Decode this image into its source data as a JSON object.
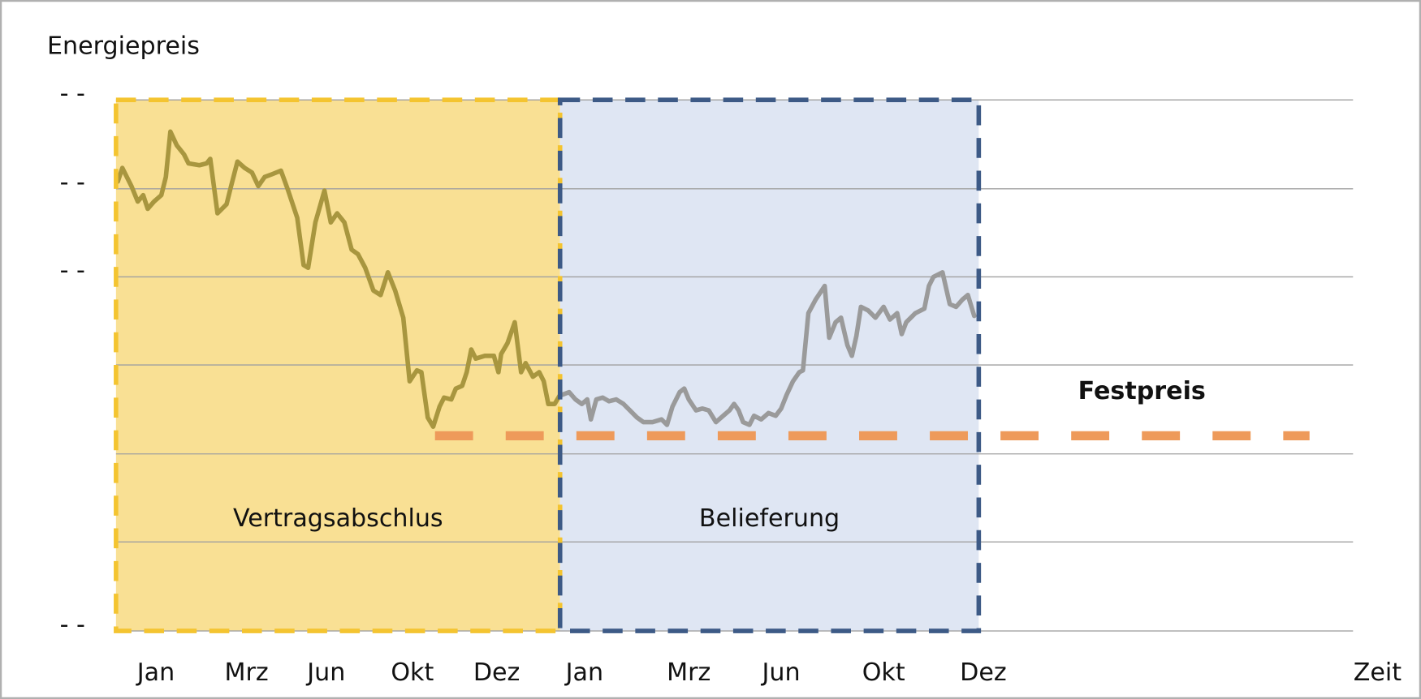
{
  "chart_data": {
    "type": "line",
    "y_label": "Energiepreis",
    "x_label": "Zeit",
    "xlim": [
      128,
      1493
    ],
    "ylim": [
      0,
      585
    ],
    "ygrid": [
      0,
      98,
      195,
      293,
      390,
      487,
      585
    ],
    "yticks": [
      {
        "value": 585,
        "label": "- -"
      },
      {
        "value": 487,
        "label": "- -"
      },
      {
        "value": 390,
        "label": "- -"
      },
      {
        "value": 0,
        "label": "- -"
      }
    ],
    "xticks": [
      {
        "value": 172,
        "label": "Jan"
      },
      {
        "value": 272,
        "label": "Mrz"
      },
      {
        "value": 360,
        "label": "Jun"
      },
      {
        "value": 455,
        "label": "Okt"
      },
      {
        "value": 548,
        "label": "Dez"
      },
      {
        "value": 645,
        "label": "Jan"
      },
      {
        "value": 760,
        "label": "Mrz"
      },
      {
        "value": 862,
        "label": "Jun"
      },
      {
        "value": 975,
        "label": "Okt"
      },
      {
        "value": 1085,
        "label": "Dez"
      }
    ],
    "regions": [
      {
        "label": "Vertragsabschlus",
        "x": [
          128,
          618
        ],
        "fill": "#f9e094",
        "border": "#f4c430"
      },
      {
        "label": "Belieferung",
        "x": [
          618,
          1080
        ],
        "fill": "#dfe6f3",
        "border": "#3d5a86"
      }
    ],
    "fixed_price": {
      "label": "Festpreis",
      "value": 215,
      "x": [
        480,
        1445
      ],
      "color": "#ee9a5a"
    },
    "series": [
      {
        "color": "#a8963f",
        "x": [
          130,
          135,
          145,
          152,
          158,
          163,
          170,
          178,
          183,
          188,
          195,
          203,
          208,
          220,
          228,
          232,
          240,
          250,
          255,
          262,
          270,
          278,
          285,
          292,
          300,
          310,
          318,
          328,
          335,
          340,
          348,
          358,
          365,
          372,
          380,
          388,
          395,
          403,
          412,
          420,
          428,
          436,
          445,
          452,
          460,
          465,
          472,
          478,
          485,
          490,
          498,
          503,
          510,
          515,
          520,
          525,
          535,
          545,
          550,
          553,
          560,
          568,
          575,
          580,
          588,
          595,
          600,
          605,
          612,
          618
        ],
        "values": [
          495,
          510,
          490,
          473,
          480,
          465,
          473,
          480,
          500,
          550,
          535,
          525,
          515,
          513,
          515,
          520,
          460,
          470,
          490,
          517,
          510,
          505,
          490,
          500,
          503,
          507,
          485,
          455,
          403,
          400,
          450,
          485,
          450,
          460,
          450,
          420,
          415,
          400,
          375,
          370,
          395,
          375,
          345,
          275,
          287,
          285,
          235,
          225,
          247,
          257,
          255,
          267,
          270,
          285,
          310,
          300,
          303,
          303,
          285,
          305,
          317,
          340,
          285,
          295,
          280,
          285,
          275,
          250,
          250,
          260
        ]
      },
      {
        "color": "#9a9a9a",
        "x": [
          620,
          628,
          635,
          642,
          648,
          652,
          658,
          665,
          672,
          680,
          688,
          695,
          703,
          710,
          720,
          730,
          736,
          742,
          750,
          755,
          760,
          768,
          775,
          782,
          790,
          798,
          805,
          810,
          815,
          820,
          827,
          832,
          840,
          848,
          856,
          862,
          868,
          875,
          882,
          886,
          892,
          900,
          910,
          915,
          922,
          928,
          935,
          940,
          945,
          950,
          958,
          966,
          975,
          982,
          990,
          995,
          1000,
          1010,
          1020,
          1025,
          1030,
          1040,
          1048,
          1055,
          1062,
          1068,
          1075
        ],
        "values": [
          260,
          263,
          255,
          250,
          255,
          233,
          255,
          257,
          253,
          255,
          250,
          243,
          235,
          230,
          230,
          233,
          227,
          247,
          263,
          267,
          255,
          243,
          245,
          243,
          230,
          237,
          243,
          250,
          243,
          230,
          227,
          237,
          233,
          240,
          237,
          245,
          260,
          275,
          285,
          287,
          350,
          365,
          380,
          323,
          340,
          345,
          315,
          303,
          325,
          357,
          353,
          345,
          357,
          343,
          350,
          327,
          340,
          350,
          355,
          380,
          390,
          395,
          360,
          357,
          365,
          370,
          347
        ]
      }
    ]
  }
}
